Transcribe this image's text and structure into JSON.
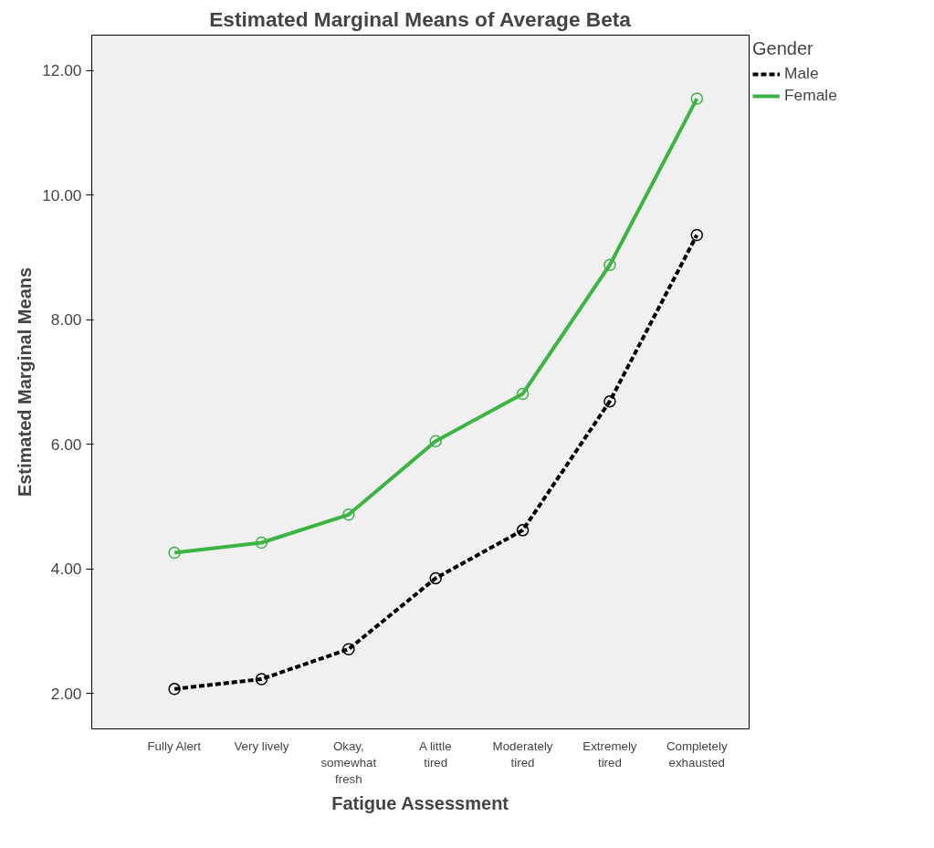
{
  "chart_data": {
    "type": "line",
    "title": "Estimated Marginal Means of Average Beta",
    "xlabel": "Fatigue Assessment",
    "ylabel": "Estimated Marginal Means",
    "legend_title": "Gender",
    "categories": [
      "Fully Alert",
      "Very lively",
      "Okay, somewhat fresh",
      "A little tired",
      "Moderately tired",
      "Extremely tired",
      "Completely exhausted"
    ],
    "series": [
      {
        "name": "Male",
        "color": "#000000",
        "line_style": "dashed",
        "values": [
          2.07,
          2.23,
          2.71,
          3.85,
          4.62,
          6.69,
          9.36
        ]
      },
      {
        "name": "Female",
        "color": "#3cb443",
        "line_style": "solid",
        "values": [
          4.26,
          4.42,
          4.87,
          6.05,
          6.81,
          8.88,
          11.55
        ]
      }
    ],
    "ylim": [
      1.43,
      12.57
    ],
    "yticks": [
      {
        "value": 2,
        "label": "2.00"
      },
      {
        "value": 4,
        "label": "4.00"
      },
      {
        "value": 6,
        "label": "6.00"
      },
      {
        "value": 8,
        "label": "8.00"
      },
      {
        "value": 10,
        "label": "10.00"
      },
      {
        "value": 12,
        "label": "12.00"
      }
    ],
    "grid": false,
    "legend": "top right",
    "marker": "circle"
  }
}
